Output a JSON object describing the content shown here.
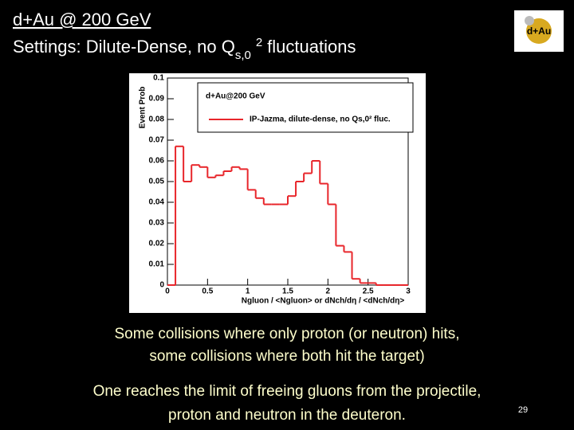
{
  "slide": {
    "title": "d+Au @ 200 GeV",
    "settings_parts": [
      "Settings:   Dilute-Dense, no Q",
      "s,0",
      "2",
      "fluctuations"
    ],
    "logo": "d+Au",
    "body": [
      "Some collisions where only proton (or neutron) hits,",
      "some collisions where both hit the target)",
      "One reaches the limit of freeing  gluons from the projectile,",
      "proton and neutron in the deuteron."
    ],
    "page_number": "29"
  },
  "chart_data": {
    "type": "histogram",
    "legend_title": "d+Au@200 GeV",
    "x_label": "Ngluon / <Ngluon>  or dNch/dη / <dNch/dη>",
    "y_label": "Event Prob",
    "bins": [
      0,
      0.1,
      0.2,
      0.3,
      0.4,
      0.5,
      0.6,
      0.7,
      0.8,
      0.9,
      1,
      1.1,
      1.2,
      1.3,
      1.4,
      1.5,
      1.6,
      1.7,
      1.8,
      1.9,
      2,
      2.1,
      2.2,
      2.3,
      2.4,
      2.5,
      2.6,
      2.7,
      2.8,
      2.9,
      3
    ],
    "series": [
      {
        "name": "IP-Jazma, dilute-dense, no Qs,0² fluc.",
        "color": "#e8262b",
        "values": [
          0,
          0.067,
          0.05,
          0.058,
          0.057,
          0.052,
          0.053,
          0.055,
          0.057,
          0.056,
          0.046,
          0.042,
          0.039,
          0.039,
          0.039,
          0.043,
          0.05,
          0.054,
          0.06,
          0.049,
          0.039,
          0.019,
          0.016,
          0.003,
          0.001,
          0.001,
          0,
          0,
          0,
          0
        ]
      }
    ],
    "xlim": [
      0,
      3
    ],
    "xticks": [
      0,
      0.5,
      1,
      1.5,
      2,
      2.5,
      3
    ],
    "ylim": [
      0,
      0.1
    ],
    "yticks": [
      0,
      0.01,
      0.02,
      0.03,
      0.04,
      0.05,
      0.06,
      0.07,
      0.08,
      0.09,
      0.1
    ],
    "legend": "top-right"
  }
}
